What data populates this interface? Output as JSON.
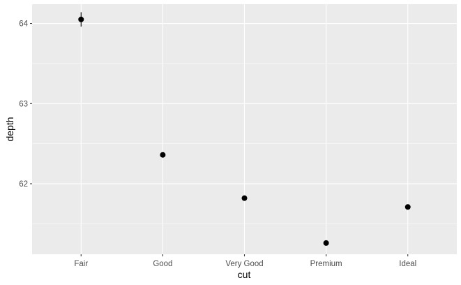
{
  "chart_data": {
    "type": "scatter",
    "title": "",
    "xlabel": "cut",
    "ylabel": "depth",
    "categories": [
      "Fair",
      "Good",
      "Very Good",
      "Premium",
      "Ideal"
    ],
    "values": [
      64.05,
      62.36,
      61.82,
      61.26,
      61.71
    ],
    "error_low": [
      63.96,
      62.33,
      61.8,
      61.25,
      61.7
    ],
    "error_high": [
      64.14,
      62.39,
      61.84,
      61.27,
      61.72
    ],
    "ylim": [
      61.12,
      64.24
    ],
    "y_ticks": [
      62,
      63,
      64
    ],
    "y_tick_labels": [
      "62",
      "63",
      "64"
    ],
    "grid": true,
    "colors": {
      "panel": "#EBEBEB",
      "grid_major": "#FFFFFF",
      "point": "#000000",
      "tick": "#333333"
    }
  }
}
